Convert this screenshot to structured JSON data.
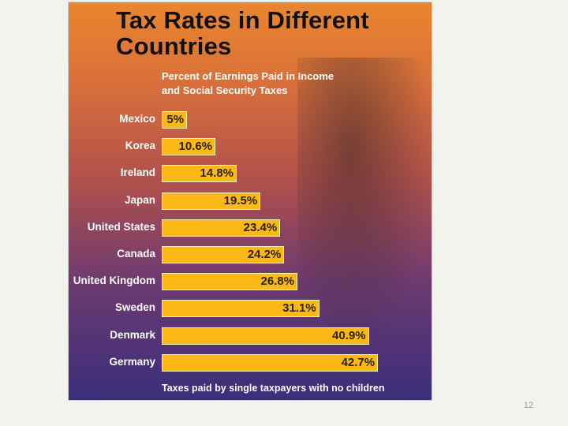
{
  "slide_number": "12",
  "chart_data": {
    "type": "bar",
    "orientation": "horizontal",
    "title": "Tax Rates in Different Countries",
    "subtitle": "Percent of Earnings Paid in Income and Social Security Taxes",
    "note": "Taxes paid by single taxpayers with no children",
    "categories": [
      "Mexico",
      "Korea",
      "Ireland",
      "Japan",
      "United States",
      "Canada",
      "United Kingdom",
      "Sweden",
      "Denmark",
      "Germany"
    ],
    "values": [
      5,
      10.6,
      14.8,
      19.5,
      23.4,
      24.2,
      26.8,
      31.1,
      40.9,
      42.7
    ],
    "value_labels": [
      "5%",
      "10.6%",
      "14.8%",
      "19.5%",
      "23.4%",
      "24.2%",
      "26.8%",
      "31.1%",
      "40.9%",
      "42.7%"
    ],
    "color": "#fbb817"
  }
}
